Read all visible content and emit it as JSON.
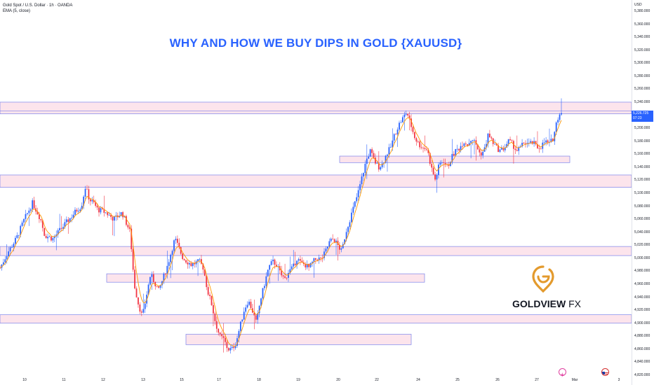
{
  "legend": {
    "symbol": "Gold Spot / U.S. Dollar · 1h · OANDA",
    "indicator": "EMA (5, close)"
  },
  "headline": "WHY AND HOW WE BUY DIPS IN GOLD {XAUUSD}",
  "price_axis": {
    "currency": "USD",
    "ticks": [
      "5,380.000",
      "5,360.000",
      "5,340.000",
      "5,320.000",
      "5,300.000",
      "5,280.000",
      "5,260.000",
      "5,240.000",
      "5,200.000",
      "5,180.000",
      "5,160.000",
      "5,140.000",
      "5,120.000",
      "5,100.000",
      "5,080.000",
      "5,060.000",
      "5,040.000",
      "5,020.000",
      "5,000.000",
      "4,980.000",
      "4,960.000",
      "4,940.000",
      "4,920.000",
      "4,900.000",
      "4,880.000",
      "4,860.000",
      "4,840.000",
      "4,820.000"
    ],
    "last_price": "5,226.725",
    "countdown": "07:23"
  },
  "time_axis": {
    "labels": [
      "10",
      "11",
      "12",
      "13",
      "15",
      "17",
      "18",
      "19",
      "20",
      "22",
      "24",
      "25",
      "26",
      "27",
      "Mar",
      "3"
    ]
  },
  "brand": {
    "name": "GOLDVIEW",
    "suffix": "FX"
  },
  "colors": {
    "up": "#2962ff",
    "down": "#f23645",
    "ema": "#ff9800",
    "zone_fill": "#fce4ec",
    "zone_border": "#7b83eb",
    "headline": "#2962ff",
    "logo": "#e39a2d"
  },
  "chart_data": {
    "type": "candlestick",
    "instrument": "Gold Spot / U.S. Dollar",
    "timeframe": "1h",
    "source": "OANDA",
    "y_unit": "USD",
    "ylim": [
      4820,
      5395
    ],
    "x_labels": [
      "10",
      "11",
      "12",
      "13",
      "15",
      "17",
      "18",
      "19",
      "20",
      "22",
      "24",
      "25",
      "26",
      "27",
      "Mar",
      "3"
    ],
    "last_price": 5226.725,
    "ema": {
      "name": "EMA (5, close)",
      "length": 5
    },
    "zones": [
      {
        "from": 5222,
        "to": 5240
      },
      {
        "from": 5109,
        "to": 5128
      },
      {
        "from": 5004,
        "to": 5018
      },
      {
        "from": 4900,
        "to": 4913
      },
      {
        "from": 4963,
        "to": 4976
      },
      {
        "from": 4867,
        "to": 4883
      },
      {
        "from": 5147,
        "to": 5157
      }
    ],
    "path_points": [
      [
        0,
        4985
      ],
      [
        0.2,
        5010
      ],
      [
        0.4,
        5030
      ],
      [
        0.6,
        5060
      ],
      [
        0.8,
        5085
      ],
      [
        1,
        5060
      ],
      [
        1.1,
        5035
      ],
      [
        1.3,
        5030
      ],
      [
        1.5,
        5045
      ],
      [
        1.7,
        5060
      ],
      [
        1.9,
        5075
      ],
      [
        2.0,
        5080
      ],
      [
        2.1,
        5110
      ],
      [
        2.2,
        5090
      ],
      [
        2.3,
        5085
      ],
      [
        2.4,
        5075
      ],
      [
        2.6,
        5070
      ],
      [
        2.8,
        5060
      ],
      [
        3.0,
        5070
      ],
      [
        3.2,
        5040
      ],
      [
        3.3,
        4960
      ],
      [
        3.4,
        4930
      ],
      [
        3.5,
        4910
      ],
      [
        3.7,
        4975
      ],
      [
        3.9,
        4950
      ],
      [
        4.1,
        4985
      ],
      [
        4.3,
        5030
      ],
      [
        4.5,
        5000
      ],
      [
        4.7,
        4990
      ],
      [
        4.9,
        4995
      ],
      [
        5.0,
        4985
      ],
      [
        5.1,
        4950
      ],
      [
        5.2,
        4930
      ],
      [
        5.3,
        4900
      ],
      [
        5.4,
        4880
      ],
      [
        5.5,
        4875
      ],
      [
        5.6,
        4860
      ],
      [
        5.7,
        4860
      ],
      [
        5.8,
        4870
      ],
      [
        5.9,
        4895
      ],
      [
        6.0,
        4920
      ],
      [
        6.1,
        4935
      ],
      [
        6.2,
        4920
      ],
      [
        6.3,
        4900
      ],
      [
        6.4,
        4935
      ],
      [
        6.5,
        4960
      ],
      [
        6.6,
        4985
      ],
      [
        6.7,
        4995
      ],
      [
        6.8,
        4990
      ],
      [
        6.9,
        4975
      ],
      [
        7.0,
        4968
      ],
      [
        7.1,
        4980
      ],
      [
        7.2,
        4985
      ],
      [
        7.3,
        5000
      ],
      [
        7.4,
        4992
      ],
      [
        7.5,
        4990
      ],
      [
        7.6,
        4985
      ],
      [
        7.7,
        4995
      ],
      [
        7.8,
        5000
      ],
      [
        7.9,
        4998
      ],
      [
        8.0,
        5010
      ],
      [
        8.1,
        5025
      ],
      [
        8.2,
        5030
      ],
      [
        8.3,
        5020
      ],
      [
        8.4,
        5010
      ],
      [
        8.5,
        5040
      ],
      [
        8.6,
        5060
      ],
      [
        8.7,
        5080
      ],
      [
        8.8,
        5100
      ],
      [
        8.9,
        5125
      ],
      [
        9.0,
        5150
      ],
      [
        9.1,
        5165
      ],
      [
        9.2,
        5150
      ],
      [
        9.3,
        5140
      ],
      [
        9.4,
        5145
      ],
      [
        9.5,
        5160
      ],
      [
        9.6,
        5170
      ],
      [
        9.7,
        5190
      ],
      [
        9.8,
        5205
      ],
      [
        9.9,
        5215
      ],
      [
        10.0,
        5225
      ],
      [
        10.1,
        5205
      ],
      [
        10.2,
        5185
      ],
      [
        10.3,
        5175
      ],
      [
        10.4,
        5170
      ],
      [
        10.5,
        5168
      ],
      [
        10.6,
        5140
      ],
      [
        10.7,
        5120
      ],
      [
        10.8,
        5145
      ],
      [
        10.9,
        5150
      ],
      [
        11.0,
        5140
      ],
      [
        11.1,
        5155
      ],
      [
        11.2,
        5165
      ],
      [
        11.3,
        5170
      ],
      [
        11.4,
        5180
      ],
      [
        11.5,
        5175
      ],
      [
        11.6,
        5185
      ],
      [
        11.7,
        5175
      ],
      [
        11.8,
        5160
      ],
      [
        11.9,
        5165
      ],
      [
        12.0,
        5190
      ],
      [
        12.1,
        5180
      ],
      [
        12.2,
        5170
      ],
      [
        12.3,
        5165
      ],
      [
        12.4,
        5170
      ],
      [
        12.5,
        5180
      ],
      [
        12.6,
        5175
      ],
      [
        12.7,
        5165
      ],
      [
        12.8,
        5170
      ],
      [
        12.9,
        5180
      ],
      [
        13.0,
        5175
      ],
      [
        13.1,
        5178
      ],
      [
        13.2,
        5170
      ],
      [
        13.3,
        5172
      ],
      [
        13.4,
        5180
      ],
      [
        13.5,
        5175
      ],
      [
        13.6,
        5185
      ],
      [
        13.7,
        5215
      ],
      [
        13.8,
        5227
      ]
    ]
  }
}
